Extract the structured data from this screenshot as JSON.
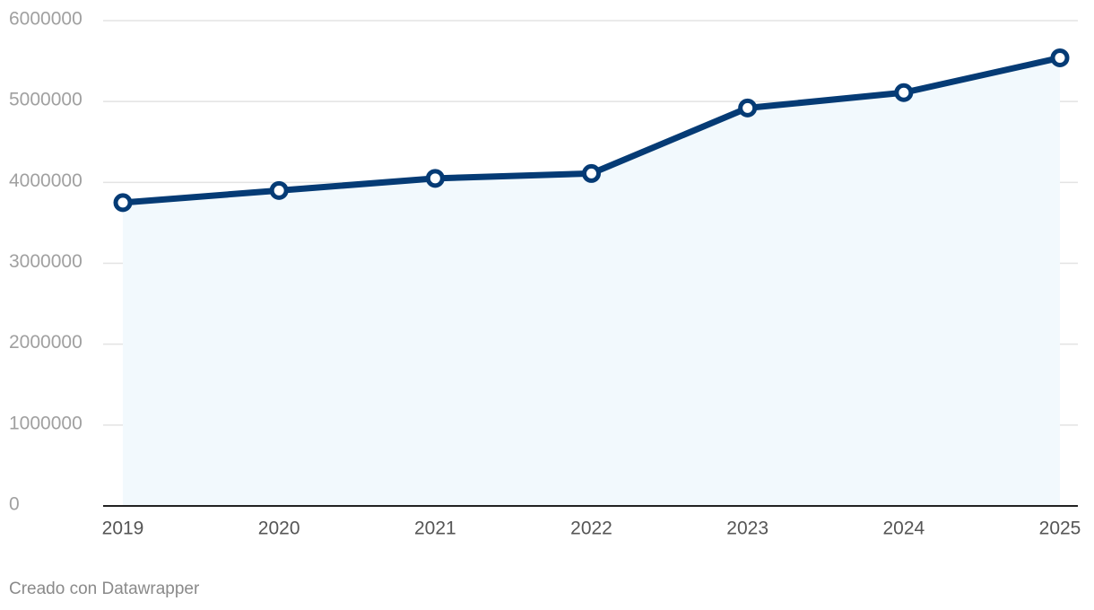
{
  "chart_data": {
    "type": "line",
    "x": [
      2019,
      2020,
      2021,
      2022,
      2023,
      2024,
      2025
    ],
    "xlim": [
      2019,
      2025
    ],
    "xticks": [
      2019,
      2020,
      2021,
      2022,
      2023,
      2024,
      2025
    ],
    "series": [
      {
        "color": "#053b75",
        "values": [
          3750000,
          3900000,
          4050000,
          4110000,
          4920000,
          5110000,
          5540000
        ]
      }
    ],
    "area_color": "#f2f9fd",
    "ylim": [
      0,
      6000000
    ],
    "yticks": [
      0,
      1000000,
      2000000,
      3000000,
      4000000,
      5000000,
      6000000
    ],
    "grid": true,
    "note": "Creado con Datawrapper"
  }
}
